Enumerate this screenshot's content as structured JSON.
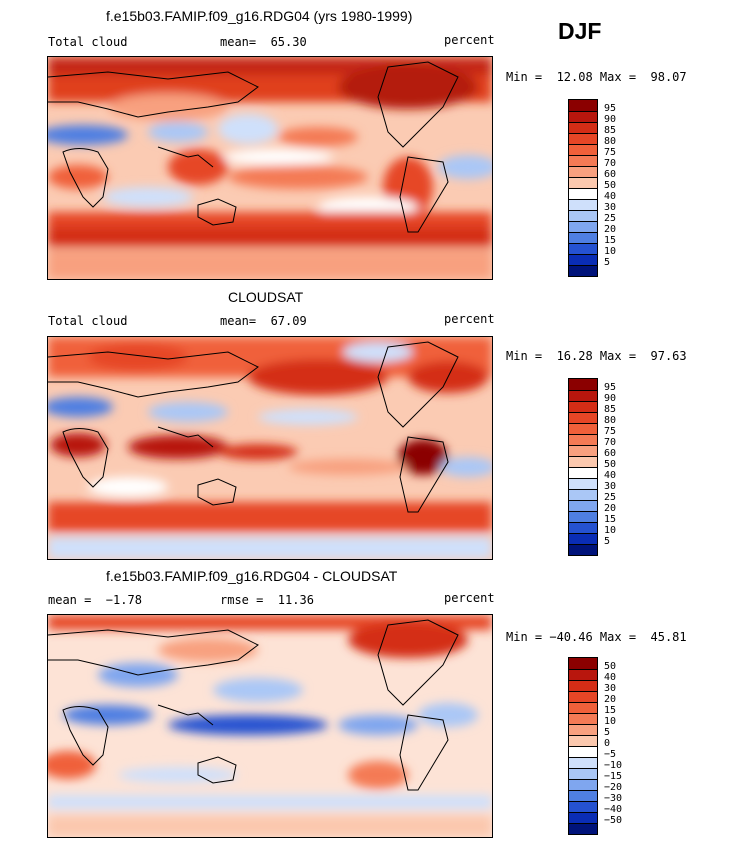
{
  "season": "DJF",
  "panels": [
    {
      "title": "f.e15b03.FAMIP.f09_g16.RDG04 (yrs 1980-1999)",
      "left_label": "Total cloud",
      "mid_label": "mean=  65.30",
      "units": "percent",
      "minmax": "Min =  12.08 Max =  98.07",
      "levels": [
        "95",
        "90",
        "85",
        "80",
        "75",
        "70",
        "60",
        "50",
        "40",
        "30",
        "25",
        "20",
        "15",
        "10",
        "5"
      ],
      "colors": [
        "#8b0000",
        "#b8160d",
        "#d42d16",
        "#e64626",
        "#f0603a",
        "#f47a55",
        "#f8a07f",
        "#fbc8ae",
        "#ffffff",
        "#cfe0fb",
        "#aac7f6",
        "#7fa6ef",
        "#4f7fe2",
        "#2552d1",
        "#0a2db5",
        "#00137a"
      ]
    },
    {
      "title": "CLOUDSAT",
      "left_label": "Total cloud",
      "mid_label": "mean=  67.09",
      "units": "percent",
      "minmax": "Min =  16.28 Max =  97.63",
      "levels": [
        "95",
        "90",
        "85",
        "80",
        "75",
        "70",
        "60",
        "50",
        "40",
        "30",
        "25",
        "20",
        "15",
        "10",
        "5"
      ],
      "colors": [
        "#8b0000",
        "#b8160d",
        "#d42d16",
        "#e64626",
        "#f0603a",
        "#f47a55",
        "#f8a07f",
        "#fbc8ae",
        "#ffffff",
        "#cfe0fb",
        "#aac7f6",
        "#7fa6ef",
        "#4f7fe2",
        "#2552d1",
        "#0a2db5",
        "#00137a"
      ]
    },
    {
      "title": "f.e15b03.FAMIP.f09_g16.RDG04 - CLOUDSAT",
      "left_label": "mean =  −1.78",
      "mid_label": "rmse =  11.36",
      "units": "percent",
      "minmax": "Min = −40.46 Max =  45.81",
      "levels": [
        "50",
        "40",
        "30",
        "20",
        "15",
        "10",
        "5",
        "0",
        "−5",
        "−10",
        "−15",
        "−20",
        "−30",
        "−40",
        "−50"
      ],
      "colors": [
        "#8b0000",
        "#b8160d",
        "#d42d16",
        "#e64626",
        "#f0603a",
        "#f47a55",
        "#f8a07f",
        "#fbc8ae",
        "#ffffff",
        "#cfe0fb",
        "#aac7f6",
        "#7fa6ef",
        "#4f7fe2",
        "#2552d1",
        "#0a2db5",
        "#00137a"
      ]
    }
  ]
}
